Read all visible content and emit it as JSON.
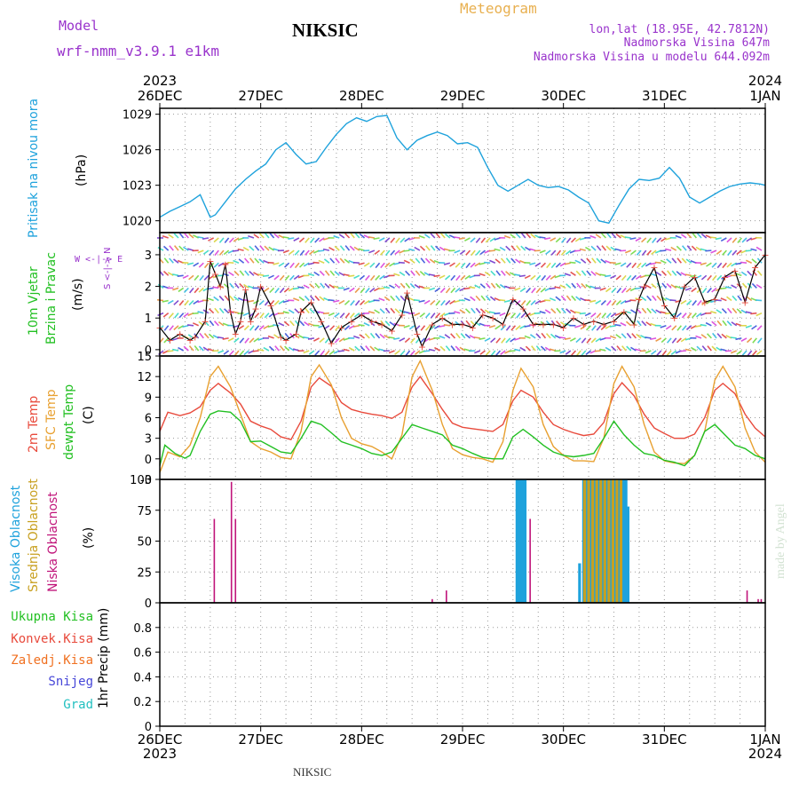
{
  "header": {
    "model_label": "Model",
    "model_name": "wrf-nmm_v3.9.1 e1km",
    "station": "NIKSIC",
    "product": "Meteogram",
    "coords": "lon,lat (18.95E, 42.7812N)",
    "elevation": "Nadmorska Visina 647m",
    "model_elevation": "Nadmorska Visina u modelu 644.092m"
  },
  "footer": {
    "station": "NIKSIC",
    "credit": "made by Angel"
  },
  "time_axis": {
    "ticks": [
      "26DEC",
      "27DEC",
      "28DEC",
      "29DEC",
      "30DEC",
      "31DEC",
      "1JAN"
    ],
    "start_year": "2023",
    "end_year": "2024"
  },
  "panel_labels": {
    "pressure": {
      "name": "Pritisak na nivou mora",
      "unit": "(hPa)"
    },
    "wind": {
      "name1": "10m Vjetar",
      "name2": "Brzina i Pravac",
      "unit": "(m/s)",
      "compass": "W <-|-> E",
      "compass_ns": "S <-|-> N"
    },
    "temp": {
      "name1": "2m Temp",
      "name2": "SFC Temp",
      "name3": "dewpt Temp",
      "unit": "(C)"
    },
    "cloud": {
      "name1": "Visoka Oblacnost",
      "name2": "Srednja Oblacnost",
      "name3": "Niska Oblacnost",
      "unit": "(%)"
    },
    "precip": {
      "unit": "1hr Precip (mm)",
      "legend": [
        "Ukupna Kisa",
        "Konvek.Kisa",
        "Zaledj.Kisa",
        "Snijeg",
        "Grad"
      ]
    }
  },
  "colors": {
    "pressure": "#1ea2dc",
    "temp2m": "#e84a3c",
    "sfc": "#e8a030",
    "dewpt": "#22c022",
    "low_cloud": "#c0147a",
    "mid_cloud": "#c8a020",
    "high_cloud": "#1ea2dc",
    "grid": "#9a9a9a",
    "purple": "#9933cc",
    "kisa": "#22c022",
    "konvek": "#e84a3c",
    "zaledj": "#f07020",
    "snijeg": "#4646d8",
    "grad": "#22c0c0",
    "credit": "#d2e2d2",
    "product": "#e8b050"
  },
  "chart_data": [
    {
      "type": "line",
      "panel": "pressure",
      "ylabel": "(hPa)",
      "ylim": [
        1019,
        1029.5
      ],
      "yticks": [
        1020,
        1023,
        1026,
        1029
      ],
      "grid": true,
      "x_unit": "days from 26DEC 2023 00h",
      "series": [
        {
          "name": "Pritisak na nivou mora",
          "color": "#1ea2dc",
          "x": [
            0,
            0.1,
            0.2,
            0.3,
            0.4,
            0.5,
            0.55,
            0.65,
            0.75,
            0.85,
            0.95,
            1.05,
            1.15,
            1.25,
            1.35,
            1.45,
            1.55,
            1.65,
            1.75,
            1.85,
            1.95,
            2.05,
            2.15,
            2.25,
            2.35,
            2.45,
            2.55,
            2.65,
            2.75,
            2.85,
            2.95,
            3.05,
            3.15,
            3.25,
            3.35,
            3.45,
            3.55,
            3.65,
            3.75,
            3.85,
            3.95,
            4.05,
            4.15,
            4.25,
            4.35,
            4.45,
            4.55,
            4.65,
            4.75,
            4.85,
            4.95,
            5.05,
            5.15,
            5.25,
            5.35,
            5.45,
            5.55,
            5.65,
            5.75,
            5.85,
            5.95,
            6.0
          ],
          "y": [
            1020.3,
            1020.8,
            1021.2,
            1021.6,
            1022.2,
            1020.3,
            1020.5,
            1021.6,
            1022.7,
            1023.5,
            1024.2,
            1024.8,
            1026.0,
            1026.6,
            1025.6,
            1024.8,
            1025.0,
            1026.2,
            1027.3,
            1028.2,
            1028.7,
            1028.4,
            1028.8,
            1028.9,
            1027.0,
            1026.0,
            1026.8,
            1027.2,
            1027.5,
            1027.2,
            1026.5,
            1026.6,
            1026.2,
            1024.5,
            1023.0,
            1022.5,
            1023.0,
            1023.5,
            1023.0,
            1022.8,
            1022.9,
            1022.6,
            1022.0,
            1021.5,
            1020.0,
            1019.8,
            1021.3,
            1022.7,
            1023.5,
            1023.4,
            1023.6,
            1024.5,
            1023.6,
            1022.0,
            1021.5,
            1022.0,
            1022.5,
            1022.9,
            1023.1,
            1023.2,
            1023.1,
            1023.0
          ]
        }
      ]
    },
    {
      "type": "line",
      "panel": "wind",
      "ylabel": "(m/s)",
      "ylim": [
        -0.2,
        3.7
      ],
      "yticks": [
        0,
        1,
        2,
        3
      ],
      "grid": true,
      "x_unit": "days from 26DEC 2023 00h",
      "series": [
        {
          "name": "10m Vjetar",
          "color": "#000000",
          "x": [
            0,
            0.1,
            0.2,
            0.3,
            0.35,
            0.45,
            0.5,
            0.55,
            0.6,
            0.65,
            0.7,
            0.75,
            0.8,
            0.85,
            0.9,
            0.95,
            1.0,
            1.1,
            1.2,
            1.25,
            1.35,
            1.4,
            1.5,
            1.6,
            1.7,
            1.8,
            1.9,
            2.0,
            2.1,
            2.2,
            2.3,
            2.4,
            2.45,
            2.55,
            2.6,
            2.7,
            2.8,
            2.9,
            3.0,
            3.1,
            3.2,
            3.3,
            3.4,
            3.5,
            3.6,
            3.7,
            3.8,
            3.9,
            4.0,
            4.1,
            4.2,
            4.3,
            4.4,
            4.5,
            4.6,
            4.7,
            4.75,
            4.8,
            4.9,
            5.0,
            5.1,
            5.2,
            5.3,
            5.4,
            5.5,
            5.6,
            5.7,
            5.8,
            5.9,
            6.0
          ],
          "y": [
            0.7,
            0.3,
            0.5,
            0.3,
            0.4,
            0.9,
            2.8,
            2.4,
            2.0,
            2.7,
            1.2,
            0.5,
            0.9,
            1.9,
            0.9,
            1.3,
            2.0,
            1.4,
            0.4,
            0.3,
            0.5,
            1.2,
            1.5,
            0.9,
            0.2,
            0.7,
            0.9,
            1.1,
            0.9,
            0.8,
            0.6,
            1.1,
            1.8,
            0.5,
            0.1,
            0.8,
            1.0,
            0.8,
            0.8,
            0.7,
            1.1,
            1.0,
            0.8,
            1.6,
            1.3,
            0.8,
            0.8,
            0.8,
            0.7,
            1.0,
            0.8,
            0.9,
            0.8,
            0.9,
            1.2,
            0.8,
            1.6,
            2.0,
            2.6,
            1.4,
            1.0,
            2.0,
            2.3,
            1.5,
            1.6,
            2.3,
            2.5,
            1.5,
            2.6,
            3.0
          ]
        }
      ]
    },
    {
      "type": "line",
      "panel": "temperature",
      "ylabel": "(C)",
      "ylim": [
        -3,
        15
      ],
      "yticks": [
        -3,
        0,
        3,
        6,
        9,
        12,
        15
      ],
      "grid": true,
      "x_unit": "days from 26DEC 2023 00h",
      "series": [
        {
          "name": "2m Temp",
          "color": "#e84a3c",
          "x": [
            0,
            0.08,
            0.2,
            0.3,
            0.4,
            0.5,
            0.58,
            0.7,
            0.8,
            0.9,
            1.0,
            1.1,
            1.2,
            1.3,
            1.4,
            1.5,
            1.58,
            1.7,
            1.8,
            1.9,
            2.0,
            2.1,
            2.2,
            2.3,
            2.4,
            2.5,
            2.58,
            2.7,
            2.8,
            2.9,
            3.0,
            3.1,
            3.2,
            3.3,
            3.4,
            3.5,
            3.58,
            3.7,
            3.8,
            3.9,
            4.0,
            4.1,
            4.2,
            4.3,
            4.4,
            4.5,
            4.58,
            4.7,
            4.8,
            4.9,
            5.0,
            5.1,
            5.2,
            5.3,
            5.4,
            5.5,
            5.58,
            5.7,
            5.8,
            5.9,
            6.0
          ],
          "y": [
            4,
            6.8,
            6.3,
            6.7,
            7.6,
            10,
            11,
            9.6,
            8,
            5.5,
            4.8,
            4.3,
            3.2,
            2.8,
            5.5,
            10.5,
            11.8,
            10.6,
            8.2,
            7.2,
            6.8,
            6.5,
            6.3,
            5.9,
            6.8,
            10.5,
            12,
            9.5,
            7.2,
            5.2,
            4.6,
            4.4,
            4.2,
            4.0,
            5.0,
            8.5,
            10,
            9.0,
            6.8,
            5.0,
            4.3,
            3.8,
            3.4,
            3.6,
            5.3,
            9.5,
            11.1,
            9.2,
            6.5,
            4.5,
            3.7,
            3.0,
            3.0,
            3.6,
            6.0,
            10,
            11,
            9.5,
            6.5,
            4.5,
            3.2
          ]
        },
        {
          "name": "SFC Temp",
          "color": "#e8a030",
          "x": [
            0,
            0.08,
            0.2,
            0.3,
            0.4,
            0.5,
            0.58,
            0.7,
            0.8,
            0.9,
            1.0,
            1.1,
            1.2,
            1.3,
            1.4,
            1.5,
            1.58,
            1.7,
            1.8,
            1.9,
            2.0,
            2.1,
            2.2,
            2.3,
            2.4,
            2.5,
            2.58,
            2.7,
            2.8,
            2.9,
            3.0,
            3.1,
            3.2,
            3.3,
            3.4,
            3.5,
            3.58,
            3.7,
            3.8,
            3.9,
            4.0,
            4.1,
            4.2,
            4.3,
            4.4,
            4.5,
            4.58,
            4.7,
            4.8,
            4.9,
            5.0,
            5.1,
            5.2,
            5.3,
            5.4,
            5.5,
            5.58,
            5.7,
            5.8,
            5.9,
            6.0
          ],
          "y": [
            -2,
            1.0,
            0.3,
            2.0,
            6,
            12,
            13.5,
            10.5,
            6.5,
            2.5,
            1.5,
            1.0,
            0.2,
            0,
            4.0,
            12,
            13.7,
            10.8,
            6.0,
            3.0,
            2.2,
            1.8,
            1.0,
            0.0,
            3.5,
            12,
            14.3,
            10.0,
            5.0,
            1.5,
            0.6,
            0.2,
            0,
            -0.5,
            2.5,
            10,
            13.2,
            10.5,
            5.0,
            1.8,
            0.5,
            -0.3,
            -0.3,
            -0.4,
            3.0,
            11,
            13.5,
            10.5,
            5.0,
            1.0,
            -0.3,
            -0.6,
            -0.7,
            0.5,
            4.0,
            11.5,
            13.5,
            10.5,
            4.5,
            1.0,
            -0.5
          ]
        },
        {
          "name": "dewpt Temp",
          "color": "#22c022",
          "x": [
            0,
            0.05,
            0.15,
            0.25,
            0.3,
            0.4,
            0.5,
            0.58,
            0.7,
            0.8,
            0.9,
            1.0,
            1.1,
            1.2,
            1.3,
            1.4,
            1.5,
            1.6,
            1.7,
            1.8,
            1.9,
            2.0,
            2.1,
            2.2,
            2.3,
            2.4,
            2.5,
            2.6,
            2.7,
            2.8,
            2.9,
            3.0,
            3.1,
            3.2,
            3.3,
            3.4,
            3.5,
            3.6,
            3.7,
            3.8,
            3.9,
            4.0,
            4.1,
            4.2,
            4.3,
            4.4,
            4.5,
            4.6,
            4.7,
            4.8,
            4.9,
            5.0,
            5.1,
            5.2,
            5.3,
            5.4,
            5.5,
            5.6,
            5.7,
            5.8,
            5.9,
            6.0
          ],
          "y": [
            -1,
            2.0,
            0.8,
            0.1,
            0.5,
            4.0,
            6.5,
            7.0,
            6.8,
            5.5,
            2.5,
            2.6,
            1.8,
            1.0,
            0.8,
            3.0,
            5.5,
            5.0,
            3.8,
            2.5,
            2.0,
            1.5,
            0.8,
            0.5,
            1.0,
            3.0,
            5.0,
            4.5,
            4.0,
            3.5,
            2.0,
            1.5,
            0.8,
            0.2,
            0,
            0,
            3.2,
            4.3,
            3.2,
            2.0,
            1.0,
            0.5,
            0.3,
            0.5,
            0.8,
            3.0,
            5.5,
            3.5,
            2.0,
            0.8,
            0.5,
            -0.2,
            -0.5,
            -1.0,
            0.5,
            4.0,
            5.0,
            3.5,
            2.0,
            1.5,
            0.5,
            0.0
          ]
        }
      ]
    },
    {
      "type": "bar",
      "panel": "cloud",
      "ylabel": "(%)",
      "ylim": [
        0,
        100
      ],
      "yticks": [
        0,
        25,
        50,
        75,
        100
      ],
      "grid": true,
      "x_unit": "days from 26DEC 2023 00h",
      "series": [
        {
          "name": "Visoka Oblacnost",
          "color": "#1ea2dc",
          "x": [
            3.54,
            3.56,
            3.58,
            3.6,
            3.62,
            4.16,
            4.2,
            4.22,
            4.24,
            4.26,
            4.28,
            4.3,
            4.32,
            4.34,
            4.36,
            4.38,
            4.4,
            4.42,
            4.44,
            4.46,
            4.48,
            4.5,
            4.52,
            4.54,
            4.56,
            4.58,
            4.6,
            4.62,
            4.64
          ],
          "y": [
            100,
            100,
            100,
            100,
            100,
            32,
            100,
            100,
            100,
            100,
            100,
            100,
            100,
            100,
            100,
            100,
            100,
            100,
            100,
            100,
            100,
            100,
            100,
            100,
            100,
            100,
            100,
            100,
            78
          ]
        },
        {
          "name": "Srednja Oblacnost",
          "color": "#c8a020",
          "x": [
            4.21,
            4.25,
            4.29,
            4.33,
            4.37,
            4.41,
            4.45,
            4.49,
            4.53,
            4.57
          ],
          "y": [
            100,
            100,
            100,
            100,
            100,
            100,
            100,
            100,
            100,
            100
          ]
        },
        {
          "name": "Niska Oblacnost",
          "color": "#c0147a",
          "x": [
            0.54,
            0.71,
            0.75,
            2.7,
            2.84,
            3.67,
            5.82,
            5.93,
            5.96
          ],
          "y": [
            68,
            98,
            68,
            3,
            10,
            68,
            10,
            3,
            3
          ]
        }
      ]
    },
    {
      "type": "bar",
      "panel": "precip",
      "ylabel": "1hr Precip (mm)",
      "ylim": [
        0,
        1.0
      ],
      "yticks": [
        0,
        0.2,
        0.4,
        0.6,
        0.8
      ],
      "grid": true,
      "series": [
        {
          "name": "Ukupna Kisa",
          "values": []
        },
        {
          "name": "Konvek.Kisa",
          "values": []
        },
        {
          "name": "Zaledj.Kisa",
          "values": []
        },
        {
          "name": "Snijeg",
          "values": []
        },
        {
          "name": "Grad",
          "values": []
        }
      ]
    }
  ]
}
